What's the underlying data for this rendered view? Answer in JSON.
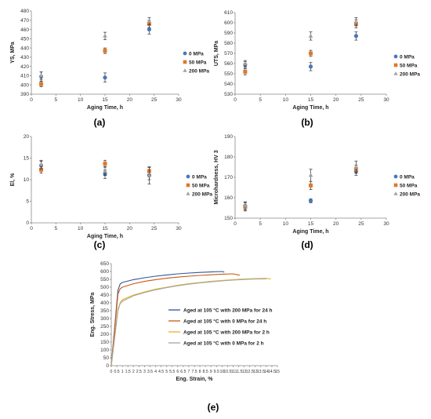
{
  "chart_data": [
    {
      "id": "a",
      "panel_label": "(a)",
      "type": "scatter",
      "xlabel": "Aging Time, h",
      "ylabel": "YS, MPa",
      "xlim": [
        0,
        30
      ],
      "xticks": [
        0,
        5,
        10,
        15,
        20,
        25,
        30
      ],
      "ylim": [
        390,
        480
      ],
      "yticks": [
        390,
        400,
        410,
        420,
        430,
        440,
        450,
        460,
        470,
        480
      ],
      "legend": "right",
      "series": [
        {
          "name": "0 MPa",
          "marker": "circle",
          "color": "#4a78b8",
          "x": [
            2,
            15,
            24
          ],
          "y": [
            409,
            408,
            460
          ],
          "err": [
            5,
            5,
            5
          ]
        },
        {
          "name": "50 MPa",
          "marker": "square",
          "color": "#e0782a",
          "x": [
            2,
            15,
            24
          ],
          "y": [
            401,
            437,
            466
          ],
          "err": [
            3,
            3,
            4
          ]
        },
        {
          "name": "200 MPa",
          "marker": "triangle",
          "color": "#a0a0a0",
          "x": [
            2,
            15,
            24
          ],
          "y": [
            410,
            453,
            469
          ],
          "err": [
            4,
            4,
            4
          ]
        }
      ]
    },
    {
      "id": "b",
      "panel_label": "(b)",
      "type": "scatter",
      "xlabel": "Aging Time, h",
      "ylabel": "UTS, MPa",
      "xlim": [
        0,
        30
      ],
      "xticks": [
        0,
        5,
        10,
        15,
        20,
        25,
        30
      ],
      "ylim": [
        530,
        610
      ],
      "yticks": [
        530,
        540,
        550,
        560,
        570,
        580,
        590,
        600,
        610
      ],
      "legend": "right",
      "series": [
        {
          "name": "0 MPa",
          "marker": "circle",
          "color": "#4a78b8",
          "x": [
            2,
            15,
            24
          ],
          "y": [
            559,
            557,
            587
          ],
          "err": [
            3,
            4,
            4
          ]
        },
        {
          "name": "50 MPa",
          "marker": "square",
          "color": "#e0782a",
          "x": [
            2,
            15,
            24
          ],
          "y": [
            552,
            570,
            599
          ],
          "err": [
            3,
            3,
            4
          ]
        },
        {
          "name": "200 MPa",
          "marker": "triangle",
          "color": "#a0a0a0",
          "x": [
            2,
            15,
            24
          ],
          "y": [
            560,
            587,
            601
          ],
          "err": [
            3,
            4,
            4
          ]
        }
      ]
    },
    {
      "id": "c",
      "panel_label": "(c)",
      "type": "scatter",
      "xlabel": "Aging Time, h",
      "ylabel": "El, %",
      "xlim": [
        0,
        30
      ],
      "xticks": [
        0,
        5,
        10,
        15,
        20,
        25,
        30
      ],
      "ylim": [
        0,
        20
      ],
      "yticks": [
        0,
        5,
        10,
        15,
        20
      ],
      "legend": "right",
      "series": [
        {
          "name": "0 MPa",
          "marker": "circle",
          "color": "#4a78b8",
          "x": [
            2,
            15,
            24
          ],
          "y": [
            13.3,
            11.3,
            11.0
          ],
          "err": [
            1.0,
            1.0,
            1.0
          ]
        },
        {
          "name": "50 MPa",
          "marker": "square",
          "color": "#e0782a",
          "x": [
            2,
            15,
            24
          ],
          "y": [
            12.3,
            13.7,
            12.0
          ],
          "err": [
            0.8,
            0.8,
            0.8
          ]
        },
        {
          "name": "200 MPa",
          "marker": "triangle",
          "color": "#a0a0a0",
          "x": [
            2,
            15,
            24
          ],
          "y": [
            13.5,
            12.0,
            11.0
          ],
          "err": [
            1.0,
            1.0,
            2.0
          ]
        }
      ]
    },
    {
      "id": "d",
      "panel_label": "(d)",
      "type": "scatter",
      "xlabel": "Aging Time, h",
      "ylabel": "Microhardness, HV 3",
      "xlim": [
        0,
        30
      ],
      "xticks": [
        0,
        5,
        10,
        15,
        20,
        25,
        30
      ],
      "ylim": [
        150,
        190
      ],
      "yticks": [
        150,
        160,
        170,
        180,
        190
      ],
      "legend": "right",
      "series": [
        {
          "name": "0 MPa",
          "marker": "circle",
          "color": "#4a78b8",
          "x": [
            2,
            15,
            24
          ],
          "y": [
            156,
            158.5,
            173
          ],
          "err": [
            2,
            1,
            2
          ]
        },
        {
          "name": "50 MPa",
          "marker": "square",
          "color": "#e0782a",
          "x": [
            2,
            15,
            24
          ],
          "y": [
            155.5,
            166,
            174
          ],
          "err": [
            2,
            2,
            2
          ]
        },
        {
          "name": "200 MPa",
          "marker": "triangle",
          "color": "#a0a0a0",
          "x": [
            2,
            15,
            24
          ],
          "y": [
            156,
            171,
            175
          ],
          "err": [
            2,
            3,
            3
          ]
        }
      ]
    },
    {
      "id": "e",
      "panel_label": "(e)",
      "type": "line",
      "xlabel": "Eng. Strain, %",
      "ylabel": "Eng. Stress, MPa",
      "xlim": [
        0,
        15
      ],
      "xticks": [
        0,
        0.5,
        1,
        1.5,
        2,
        2.5,
        3,
        3.5,
        4,
        4.5,
        5,
        5.5,
        6,
        6.5,
        7,
        7.5,
        8,
        8.5,
        9,
        9.5,
        10,
        10.5,
        11,
        11.5,
        12,
        12.5,
        13,
        13.5,
        14,
        14.5,
        15
      ],
      "ylim": [
        0,
        650
      ],
      "yticks": [
        0,
        50,
        100,
        150,
        200,
        250,
        300,
        350,
        400,
        450,
        500,
        550,
        600,
        650
      ],
      "legend": "right",
      "series": [
        {
          "name": "Aged at 105 °C with 200 MPa for 24 h",
          "color": "#2f5597",
          "x": [
            0,
            0.6,
            0.8,
            1.0,
            2,
            3,
            4,
            5,
            6,
            7,
            8,
            9,
            10,
            10.2
          ],
          "y": [
            0,
            480,
            520,
            530,
            548,
            560,
            570,
            578,
            585,
            590,
            594,
            597,
            600,
            596
          ]
        },
        {
          "name": "Aged at 105 °C with 0 MPa for 24 h",
          "color": "#c55a11",
          "x": [
            0,
            0.6,
            0.8,
            1.0,
            2,
            3,
            4,
            5,
            6,
            7,
            8,
            9,
            10,
            11,
            11.6
          ],
          "y": [
            0,
            455,
            490,
            500,
            522,
            537,
            548,
            557,
            564,
            570,
            575,
            579,
            583,
            585,
            576
          ]
        },
        {
          "name": "Aged at 105 °C with 200 MPa for 2 h",
          "color": "#e6b422",
          "x": [
            0,
            0.6,
            0.8,
            1.0,
            2,
            3,
            4,
            5,
            6,
            7,
            8,
            9,
            10,
            11,
            12,
            13,
            14,
            14.4
          ],
          "y": [
            0,
            360,
            400,
            420,
            450,
            470,
            487,
            500,
            512,
            522,
            530,
            537,
            543,
            548,
            552,
            555,
            556,
            552
          ]
        },
        {
          "name": "Aged at 105 °C with 0 MPa for 2 h",
          "color": "#a5a5a5",
          "x": [
            0,
            0.6,
            0.8,
            1.0,
            2,
            3,
            4,
            5,
            6,
            7,
            8,
            9,
            10,
            11,
            12,
            13,
            14
          ],
          "y": [
            0,
            350,
            395,
            410,
            445,
            466,
            483,
            497,
            509,
            519,
            527,
            534,
            540,
            545,
            549,
            552,
            553
          ]
        }
      ]
    }
  ]
}
